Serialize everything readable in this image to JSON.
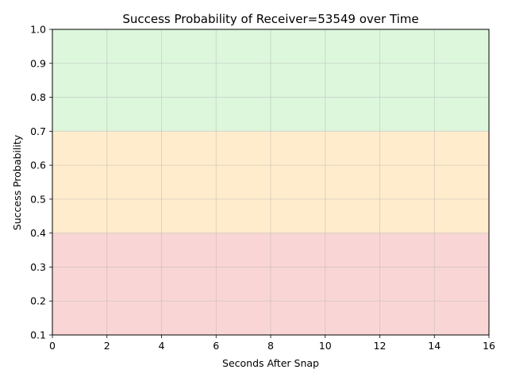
{
  "chart_data": {
    "type": "area",
    "title": "Success Probability of Receiver=53549 over Time",
    "xlabel": "Seconds After Snap",
    "ylabel": "Success Probability",
    "xlim": [
      0,
      16
    ],
    "ylim": [
      0.1,
      1.0
    ],
    "xticks": [
      "0",
      "2",
      "4",
      "6",
      "8",
      "10",
      "12",
      "14",
      "16"
    ],
    "yticks": [
      "0.1",
      "0.2",
      "0.3",
      "0.4",
      "0.5",
      "0.6",
      "0.7",
      "0.8",
      "0.9",
      "1.0"
    ],
    "grid": true,
    "bands": [
      {
        "y_from": 0.7,
        "y_to": 1.0,
        "color": "#dcf7dc"
      },
      {
        "y_from": 0.4,
        "y_to": 0.7,
        "color": "#ffeccc"
      },
      {
        "y_from": 0.1,
        "y_to": 0.4,
        "color": "#f9d6d5"
      }
    ],
    "series": []
  }
}
